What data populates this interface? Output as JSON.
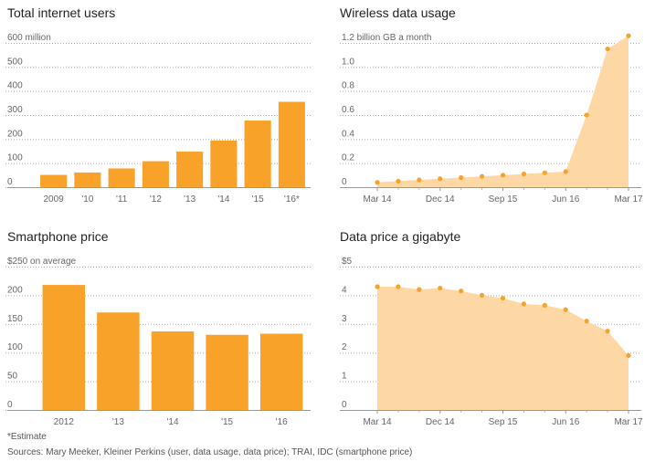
{
  "chart_data": [
    {
      "id": "users",
      "type": "bar",
      "title": "Total internet users",
      "top_label": "600 million",
      "yticks": [
        0,
        100,
        200,
        300,
        400,
        500,
        600
      ],
      "ytick_labels": [
        "0",
        "100",
        "200",
        "300",
        "400",
        "500",
        "600 million"
      ],
      "ylim": [
        0,
        600
      ],
      "categories": [
        "2009",
        "'10",
        "'11",
        "'12",
        "'13",
        "'14",
        "'15",
        "'16*"
      ],
      "values": [
        51,
        61,
        78,
        108,
        148,
        194,
        277,
        355
      ],
      "grid": true
    },
    {
      "id": "wireless",
      "type": "area",
      "title": "Wireless data usage",
      "yticks": [
        0,
        0.2,
        0.4,
        0.6,
        0.8,
        1.0,
        1.2
      ],
      "ytick_labels": [
        "0",
        "0.2",
        "0.4",
        "0.6",
        "0.8",
        "1.0",
        "1.2 billion GB a month"
      ],
      "ylim": [
        0,
        1.25
      ],
      "x_labels": [
        "Mar 14",
        "Dec 14",
        "Sep 15",
        "Jun 16",
        "Mar 17"
      ],
      "x": [
        "Mar 14",
        "Jun 14",
        "Sep 14",
        "Dec 14",
        "Mar 15",
        "Jun 15",
        "Sep 15",
        "Dec 15",
        "Mar 16",
        "Jun 16",
        "Sep 16",
        "Dec 16",
        "Mar 17"
      ],
      "values": [
        0.04,
        0.05,
        0.06,
        0.07,
        0.08,
        0.09,
        0.1,
        0.11,
        0.12,
        0.13,
        0.6,
        1.15,
        1.26
      ],
      "grid": true
    },
    {
      "id": "phone",
      "type": "bar",
      "title": "Smartphone price",
      "yticks": [
        0,
        50,
        100,
        150,
        200,
        250
      ],
      "ytick_labels": [
        "0",
        "50",
        "100",
        "150",
        "200",
        "$250 on average"
      ],
      "ylim": [
        0,
        250
      ],
      "categories": [
        "2012",
        "'13",
        "'14",
        "'15",
        "'16"
      ],
      "values": [
        218,
        170,
        137,
        131,
        133
      ],
      "grid": true
    },
    {
      "id": "dataprice",
      "type": "area",
      "title": "Data price a gigabyte",
      "yticks": [
        0,
        1,
        2,
        3,
        4,
        5
      ],
      "ytick_labels": [
        "0",
        "1",
        "2",
        "3",
        "4",
        "$5"
      ],
      "ylim": [
        0,
        5
      ],
      "x_labels": [
        "Mar 14",
        "Dec 14",
        "Sep 15",
        "Jun 16",
        "Mar 17"
      ],
      "x": [
        "Mar 14",
        "Jun 14",
        "Sep 14",
        "Dec 14",
        "Mar 15",
        "Jun 15",
        "Sep 15",
        "Dec 15",
        "Mar 16",
        "Jun 16",
        "Sep 16",
        "Dec 16",
        "Mar 17"
      ],
      "values": [
        4.3,
        4.3,
        4.2,
        4.25,
        4.15,
        4.0,
        3.9,
        3.7,
        3.65,
        3.5,
        3.1,
        2.75,
        1.9
      ],
      "grid": true
    }
  ],
  "colors": {
    "bar": "#f9a229",
    "area": "#fdd7a4",
    "point": "#f9a229",
    "grid": "#aaaaaa"
  },
  "footnotes": {
    "estimate": "*Estimate",
    "sources": "Sources: Mary Meeker, Kleiner Perkins (user, data usage, data price); TRAI, IDC (smartphone price)"
  }
}
